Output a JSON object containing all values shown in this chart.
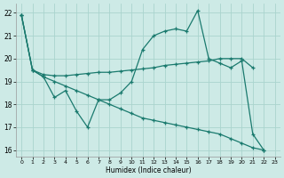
{
  "xlabel": "Humidex (Indice chaleur)",
  "bg_color": "#cdeae6",
  "grid_color": "#aad4ce",
  "line_color": "#1a7a6e",
  "xlim": [
    -0.5,
    23.5
  ],
  "ylim": [
    15.7,
    22.4
  ],
  "yticks": [
    16,
    17,
    18,
    19,
    20,
    21,
    22
  ],
  "xticks": [
    0,
    1,
    2,
    3,
    4,
    5,
    6,
    7,
    8,
    9,
    10,
    11,
    12,
    13,
    14,
    15,
    16,
    17,
    18,
    19,
    20,
    21,
    22,
    23
  ],
  "line1_x": [
    0,
    1,
    2,
    3,
    4,
    5,
    6,
    7,
    8,
    9,
    10,
    11,
    12,
    13,
    14,
    15,
    16,
    17,
    18,
    19,
    20,
    21,
    22
  ],
  "line1_y": [
    21.9,
    19.5,
    19.2,
    18.3,
    18.6,
    17.7,
    17.0,
    18.2,
    18.2,
    18.5,
    19.0,
    20.4,
    21.0,
    21.2,
    21.3,
    21.2,
    22.1,
    20.0,
    19.8,
    19.6,
    19.9,
    16.7,
    16.0
  ],
  "line2_x": [
    0,
    1,
    2,
    3,
    4,
    5,
    6,
    7,
    8,
    9,
    10,
    11,
    12,
    13,
    14,
    15,
    16,
    17,
    18,
    19,
    20,
    21
  ],
  "line2_y": [
    21.9,
    19.5,
    19.3,
    19.25,
    19.25,
    19.3,
    19.35,
    19.4,
    19.4,
    19.45,
    19.5,
    19.55,
    19.6,
    19.7,
    19.75,
    19.8,
    19.85,
    19.9,
    20.0,
    20.0,
    20.0,
    19.6
  ],
  "line3_x": [
    0,
    1,
    2,
    3,
    4,
    5,
    6,
    7,
    8,
    9,
    10,
    11,
    12,
    13,
    14,
    15,
    16,
    17,
    18,
    19,
    20,
    21,
    22
  ],
  "line3_y": [
    21.9,
    19.5,
    19.2,
    19.0,
    18.8,
    18.6,
    18.4,
    18.2,
    18.0,
    17.8,
    17.6,
    17.4,
    17.3,
    17.2,
    17.1,
    17.0,
    16.9,
    16.8,
    16.7,
    16.5,
    16.3,
    16.1,
    16.0
  ]
}
